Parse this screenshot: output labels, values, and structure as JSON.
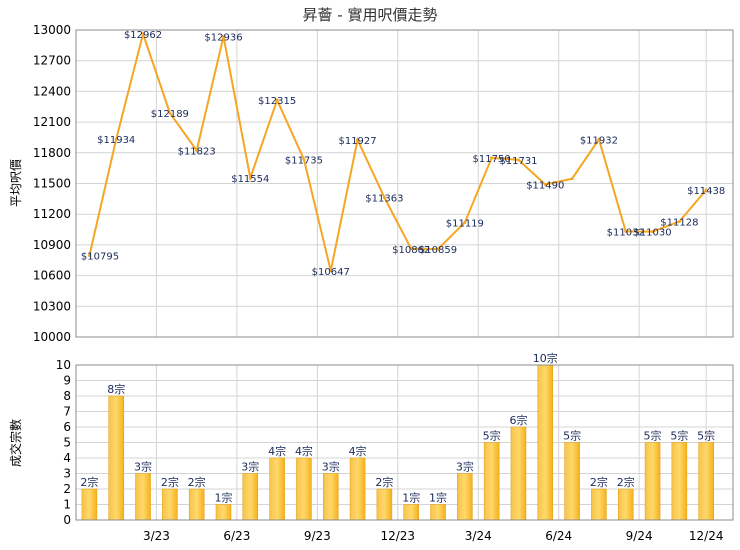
{
  "chart_data": [
    {
      "type": "line",
      "title": "昇薈 - 實用呎價走勢",
      "ylabel": "平均呎價",
      "ylim": [
        10000,
        13000
      ],
      "yticks": [
        10000,
        10300,
        10600,
        10900,
        11200,
        11500,
        11800,
        12100,
        12400,
        12700,
        13000
      ],
      "series": [
        {
          "color": "#f5a623",
          "values": [
            10795,
            11934,
            12962,
            12189,
            11823,
            12936,
            11554,
            12315,
            11735,
            10647,
            11927,
            11363,
            10862,
            10859,
            11119,
            11750,
            11731,
            11490,
            11547,
            11932,
            11032,
            11030,
            11128,
            11438
          ],
          "labels": [
            "$10795",
            "$11934",
            "$12962",
            "$12189",
            "$11823",
            "$12936",
            "$11554",
            "$12315",
            "$11735",
            "$10647",
            "$11927",
            "$11363",
            "$10862",
            "$10859",
            "$11119",
            "$11750",
            "$11731",
            "$11490",
            "",
            "$11932",
            "$11032",
            "$11030",
            "$11128",
            "$11438"
          ]
        }
      ],
      "grid": true
    },
    {
      "type": "bar",
      "ylabel": "成交宗數",
      "ylim": [
        0,
        10
      ],
      "yticks": [
        0,
        1,
        2,
        3,
        4,
        5,
        6,
        7,
        8,
        9,
        10
      ],
      "xtick_labels": [
        "3/23",
        "6/23",
        "9/23",
        "12/23",
        "3/24",
        "6/24",
        "9/24",
        "12/24"
      ],
      "xtick_index": [
        2.5,
        5.5,
        8.5,
        11.5,
        14.5,
        17.5,
        20.5,
        23
      ],
      "values": [
        2,
        8,
        3,
        2,
        2,
        1,
        3,
        4,
        4,
        3,
        4,
        2,
        1,
        1,
        3,
        5,
        6,
        10,
        5,
        2,
        2,
        5,
        5,
        5
      ],
      "labels": [
        "2宗",
        "8宗",
        "3宗",
        "2宗",
        "2宗",
        "1宗",
        "3宗",
        "4宗",
        "4宗",
        "3宗",
        "4宗",
        "2宗",
        "1宗",
        "1宗",
        "3宗",
        "5宗",
        "6宗",
        "10宗",
        "5宗",
        "2宗",
        "2宗",
        "5宗",
        "5宗",
        "5宗"
      ],
      "color": "#f5b21a",
      "grid": true
    }
  ]
}
